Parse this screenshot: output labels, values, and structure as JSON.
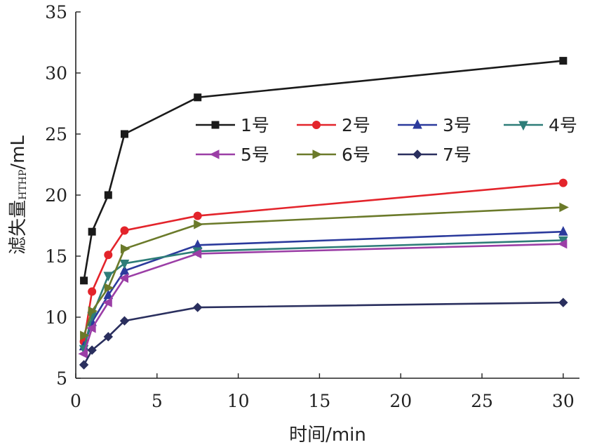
{
  "chart_data": {
    "type": "line",
    "xlabel": "时间/min",
    "ylabel": {
      "main": "滤失量",
      "subscript": "HTHP",
      "unit": "/mL"
    },
    "xlim": [
      0,
      31
    ],
    "ylim": [
      5,
      35
    ],
    "xticks": [
      0,
      5,
      10,
      15,
      20,
      25,
      30
    ],
    "yticks": [
      5,
      10,
      15,
      20,
      25,
      30,
      35
    ],
    "grid": false,
    "legend_position": "top-right",
    "x": [
      0.5,
      1,
      2,
      3,
      7.5,
      30
    ],
    "series": [
      {
        "name": "1号",
        "color": "#1a1a1a",
        "marker": "square",
        "values": [
          13.0,
          17.0,
          20.0,
          25.0,
          28.0,
          31.0
        ]
      },
      {
        "name": "2号",
        "color": "#e3242b",
        "marker": "circle",
        "values": [
          8.0,
          12.1,
          15.1,
          17.1,
          18.3,
          21.0
        ]
      },
      {
        "name": "3号",
        "color": "#2b3a9c",
        "marker": "triangle-up",
        "values": [
          7.6,
          9.6,
          11.8,
          13.8,
          15.9,
          17.0
        ]
      },
      {
        "name": "4号",
        "color": "#2e7d78",
        "marker": "triangle-down",
        "values": [
          7.4,
          10.1,
          13.4,
          14.4,
          15.4,
          16.3
        ]
      },
      {
        "name": "5号",
        "color": "#9b3ea6",
        "marker": "triangle-left",
        "values": [
          7.0,
          9.1,
          11.2,
          13.2,
          15.2,
          16.0
        ]
      },
      {
        "name": "6号",
        "color": "#6b7a2a",
        "marker": "triangle-right",
        "values": [
          8.5,
          10.5,
          12.4,
          15.6,
          17.6,
          19.0
        ]
      },
      {
        "name": "7号",
        "color": "#2a2f5e",
        "marker": "diamond",
        "values": [
          6.1,
          7.3,
          8.4,
          9.7,
          10.8,
          11.2
        ]
      }
    ]
  }
}
